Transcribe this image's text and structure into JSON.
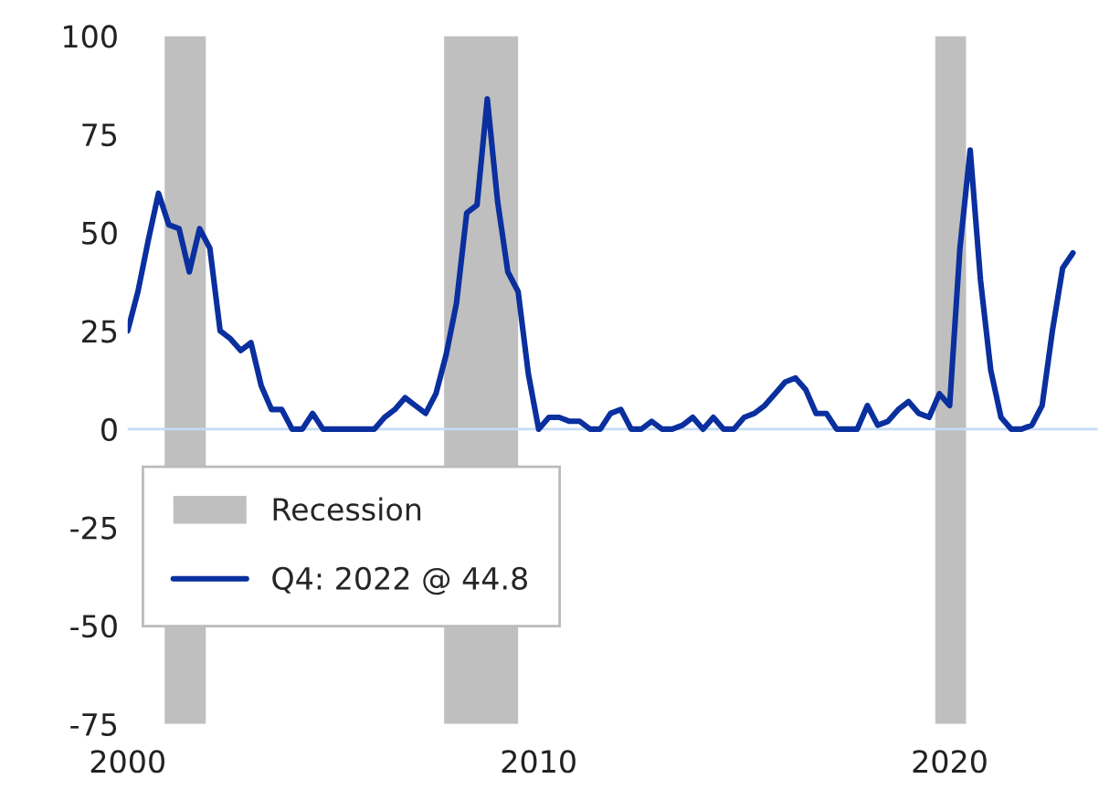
{
  "chart_data": {
    "type": "line",
    "x": [
      2000.0,
      2000.25,
      2000.5,
      2000.75,
      2001.0,
      2001.25,
      2001.5,
      2001.75,
      2002.0,
      2002.25,
      2002.5,
      2002.75,
      2003.0,
      2003.25,
      2003.5,
      2003.75,
      2004.0,
      2004.25,
      2004.5,
      2004.75,
      2005.0,
      2005.25,
      2005.5,
      2005.75,
      2006.0,
      2006.25,
      2006.5,
      2006.75,
      2007.0,
      2007.25,
      2007.5,
      2007.75,
      2008.0,
      2008.25,
      2008.5,
      2008.75,
      2009.0,
      2009.25,
      2009.5,
      2009.75,
      2010.0,
      2010.25,
      2010.5,
      2010.75,
      2011.0,
      2011.25,
      2011.5,
      2011.75,
      2012.0,
      2012.25,
      2012.5,
      2012.75,
      2013.0,
      2013.25,
      2013.5,
      2013.75,
      2014.0,
      2014.25,
      2014.5,
      2014.75,
      2015.0,
      2015.25,
      2015.5,
      2015.75,
      2016.0,
      2016.25,
      2016.5,
      2016.75,
      2017.0,
      2017.25,
      2017.5,
      2017.75,
      2018.0,
      2018.25,
      2018.5,
      2018.75,
      2019.0,
      2019.25,
      2019.5,
      2019.75,
      2020.0,
      2020.25,
      2020.5,
      2020.75,
      2021.0,
      2021.25,
      2021.5,
      2021.75,
      2022.0,
      2022.25,
      2022.5,
      2022.75,
      2023.0
    ],
    "series": [
      {
        "name": "Q4: 2022 @ 44.8",
        "color": "#0a2f9e",
        "values": [
          25,
          35,
          48,
          60,
          52,
          51,
          40,
          51,
          46,
          25,
          23,
          20,
          22,
          11,
          5,
          5,
          0,
          0,
          4,
          0,
          0,
          0,
          0,
          0,
          0,
          3,
          5,
          8,
          6,
          4,
          9,
          19,
          32,
          55,
          57,
          84,
          58,
          40,
          35,
          14,
          0,
          3,
          3,
          2,
          2,
          0,
          0,
          4,
          5,
          0,
          0,
          2,
          0,
          0,
          1,
          3,
          0,
          3,
          0,
          0,
          3,
          4,
          6,
          9,
          12,
          13,
          10,
          4,
          4,
          0,
          0,
          0,
          6,
          1,
          2,
          5,
          7,
          4,
          3,
          9,
          6,
          46,
          71,
          38,
          15,
          3,
          0,
          0,
          1,
          6,
          25,
          41,
          44.8
        ]
      }
    ],
    "bands": [
      {
        "axis": "x",
        "from": 2000.9,
        "to": 2001.9,
        "label": "Recession",
        "color": "#bfbfbf"
      },
      {
        "axis": "x",
        "from": 2007.7,
        "to": 2009.5,
        "label": null,
        "color": "#bfbfbf"
      },
      {
        "axis": "x",
        "from": 2019.65,
        "to": 2020.4,
        "label": null,
        "color": "#bfbfbf"
      }
    ],
    "ref_lines": [
      {
        "axis": "y",
        "value": 0,
        "label": null,
        "color": "#c5dcf5"
      }
    ],
    "xlim": [
      2000,
      2023.6
    ],
    "xticks": [
      2000,
      2010,
      2020
    ],
    "ylim": [
      -75,
      100
    ],
    "yticks": [
      -75,
      -50,
      -25,
      0,
      25,
      50,
      75,
      100
    ],
    "legend": "bottom left",
    "grid": false
  }
}
